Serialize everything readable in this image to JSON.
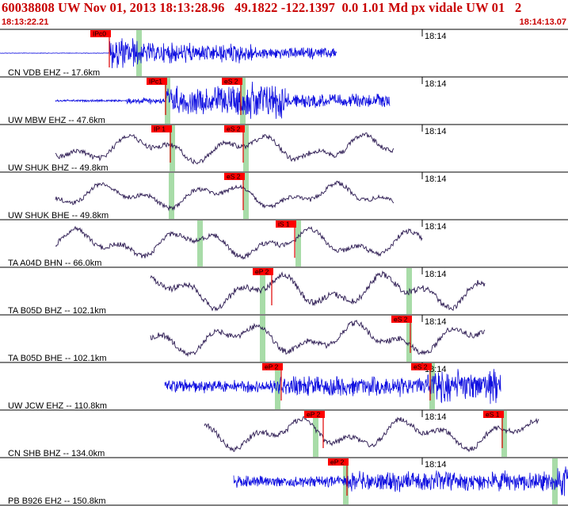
{
  "header": {
    "title": "60038808 UW Nov 01, 2013 18:13:28.96   49.1822 -122.1397  0.0 1.01 Md px vidale UW 01   2",
    "start_time": "18:13:22.21",
    "end_time": "18:14:13.07"
  },
  "colors": {
    "header_text": "#c80000",
    "pick_box": "#ff0000",
    "pick_line": "#e00000",
    "green_marker": "#a8dca8",
    "broadband": "#2a1850",
    "short_period": "#1010e0",
    "separator": "#000000",
    "background": "#ffffff"
  },
  "time_marker_label": "18:14",
  "traces": [
    {
      "label": "CN VDB EHZ -- 17.6km",
      "kind": "sp",
      "picks": [
        {
          "label": "IPc0",
          "t": 138
        }
      ],
      "greens": [
        175
      ],
      "segments": [
        {
          "from": 0,
          "to": 138,
          "amp": 0.6,
          "type": "flat"
        },
        {
          "from": 138,
          "to": 175,
          "amp": 22,
          "type": "noise"
        },
        {
          "from": 175,
          "to": 320,
          "amp": 14,
          "type": "noise"
        },
        {
          "from": 320,
          "to": 425,
          "amp": 8,
          "type": "noise"
        }
      ]
    },
    {
      "label": "UW MBW EHZ -- 47.6km",
      "kind": "sp",
      "picks": [
        {
          "label": "IPc1",
          "t": 209
        },
        {
          "label": "eS 2",
          "t": 304
        }
      ],
      "greens": [
        211,
        306
      ],
      "segments": [
        {
          "from": 70,
          "to": 160,
          "amp": 1.5,
          "type": "noise"
        },
        {
          "from": 160,
          "to": 209,
          "amp": 5,
          "type": "noise"
        },
        {
          "from": 209,
          "to": 300,
          "amp": 20,
          "type": "noise"
        },
        {
          "from": 300,
          "to": 360,
          "amp": 26,
          "type": "noise"
        },
        {
          "from": 360,
          "to": 492,
          "amp": 10,
          "type": "noise"
        }
      ]
    },
    {
      "label": "UW SHUK BHZ -- 49.8km",
      "kind": "bb",
      "picks": [
        {
          "label": "IP 1",
          "t": 215
        },
        {
          "label": "eS 2",
          "t": 307
        }
      ],
      "greens": [
        217,
        310
      ],
      "segments": [
        {
          "from": 70,
          "to": 497,
          "amp": 18,
          "type": "wave"
        }
      ]
    },
    {
      "label": "UW SHUK BHE -- 49.8km",
      "kind": "bb",
      "picks": [
        {
          "label": "eS 2",
          "t": 307
        }
      ],
      "greens": [
        216,
        310
      ],
      "segments": [
        {
          "from": 70,
          "to": 497,
          "amp": 16,
          "type": "wave"
        }
      ]
    },
    {
      "label": "TA A04D BHN -- 66.0km",
      "kind": "bb",
      "picks": [
        {
          "label": "iS 1",
          "t": 372
        }
      ],
      "greens": [
        252,
        376
      ],
      "segments": [
        {
          "from": 70,
          "to": 533,
          "amp": 18,
          "type": "wave"
        }
      ]
    },
    {
      "label": "TA B05D BHZ -- 102.1km",
      "kind": "bb",
      "picks": [
        {
          "label": "eP 2",
          "t": 343
        }
      ],
      "greens": [
        331,
        516
      ],
      "segments": [
        {
          "from": 190,
          "to": 612,
          "amp": 22,
          "type": "wave"
        }
      ]
    },
    {
      "label": "TA B05D BHE -- 102.1km",
      "kind": "bb",
      "picks": [
        {
          "label": "eS 2",
          "t": 518
        }
      ],
      "greens": [
        331,
        516
      ],
      "segments": [
        {
          "from": 190,
          "to": 612,
          "amp": 20,
          "type": "wave"
        }
      ]
    },
    {
      "label": "UW JCW EHZ -- 110.8km",
      "kind": "sp",
      "picks": [
        {
          "label": "eP 2",
          "t": 355
        },
        {
          "label": "eS 2",
          "t": 543
        }
      ],
      "greens": [
        350,
        545
      ],
      "segments": [
        {
          "from": 208,
          "to": 350,
          "amp": 9,
          "type": "noise"
        },
        {
          "from": 350,
          "to": 540,
          "amp": 14,
          "type": "noise"
        },
        {
          "from": 540,
          "to": 632,
          "amp": 24,
          "type": "noise"
        }
      ]
    },
    {
      "label": "CN SHB BHZ -- 134.0km",
      "kind": "bb",
      "picks": [
        {
          "label": "eP 2",
          "t": 408
        },
        {
          "label": "eS 1",
          "t": 634
        }
      ],
      "greens": [
        398,
        636
      ],
      "segments": [
        {
          "from": 258,
          "to": 680,
          "amp": 20,
          "type": "wave"
        }
      ]
    },
    {
      "label": "PB B926 EH2 -- 150.8km",
      "kind": "sp",
      "picks": [
        {
          "label": "eP 2",
          "t": 438
        }
      ],
      "greens": [
        436,
        700
      ],
      "segments": [
        {
          "from": 295,
          "to": 436,
          "amp": 8,
          "type": "noise"
        },
        {
          "from": 436,
          "to": 700,
          "amp": 14,
          "type": "noise"
        },
        {
          "from": 700,
          "to": 717,
          "amp": 26,
          "type": "noise"
        }
      ]
    }
  ]
}
